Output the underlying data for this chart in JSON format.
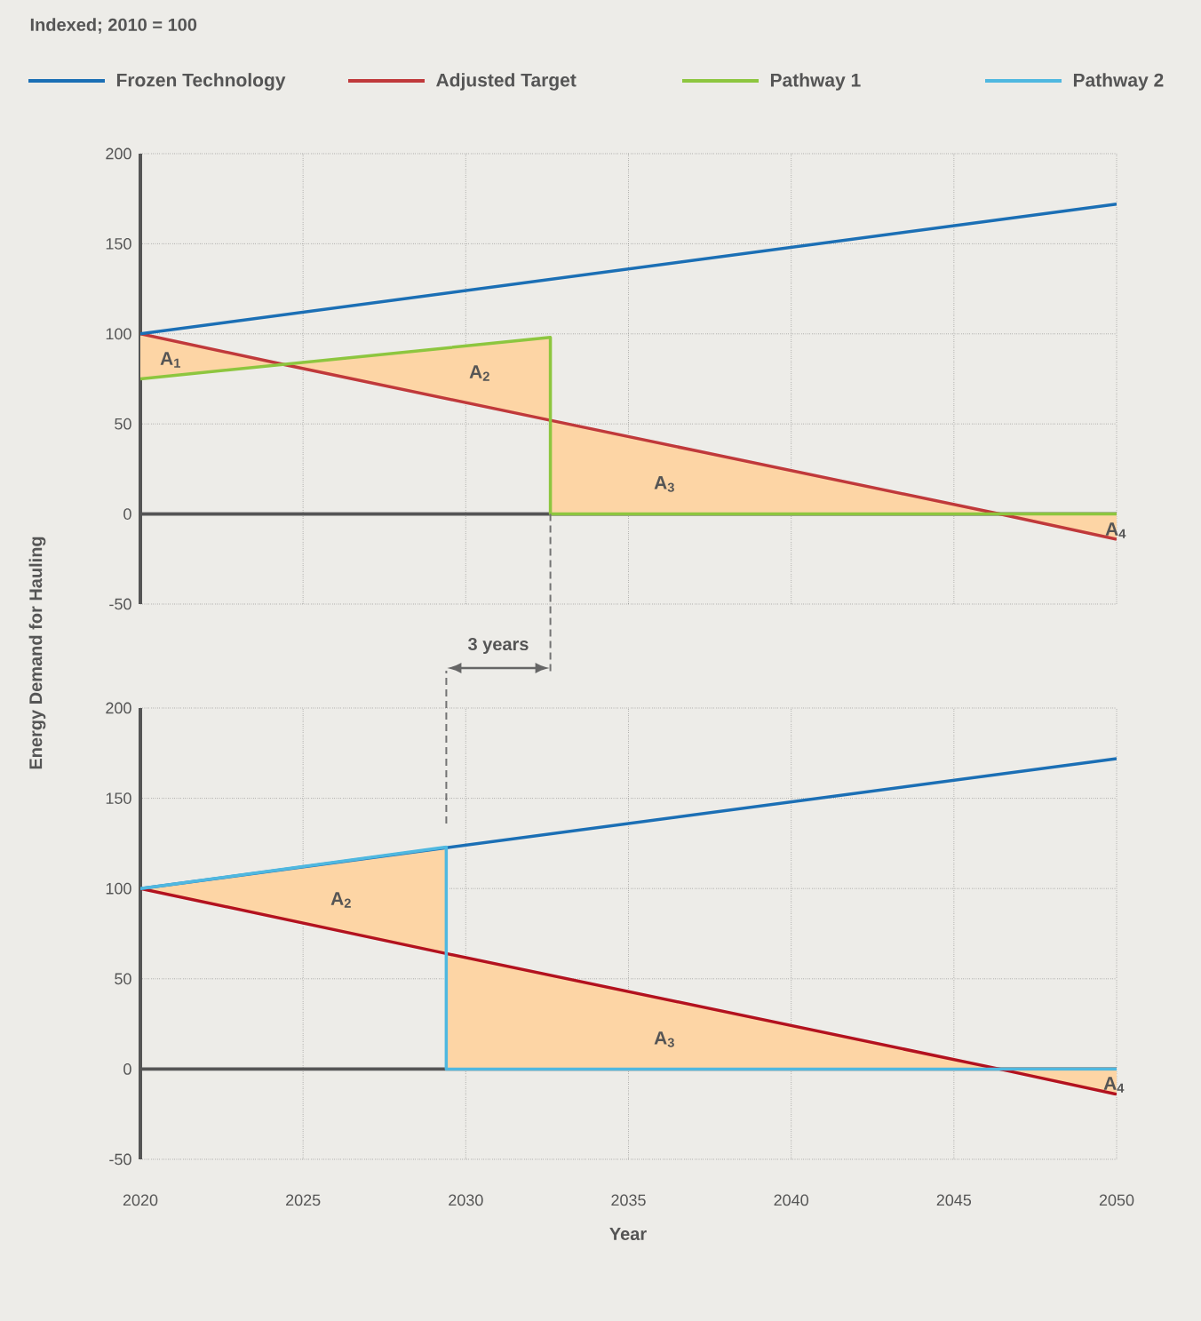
{
  "chart_data": [
    {
      "type": "line",
      "title": "Indexed; 2010 = 100",
      "ylabel": "Energy Demand for Hauling",
      "xlim": [
        2020,
        2050
      ],
      "xticks": [
        2020,
        2025,
        2030,
        2035,
        2040,
        2045,
        2050
      ],
      "ylim": [
        -50,
        200
      ],
      "yticks": [
        -50,
        0,
        50,
        100,
        150,
        200
      ],
      "grid": true,
      "legend": "top",
      "tick_labels": "y",
      "line_style": "solid",
      "marker": "none",
      "annotations": [
        "A$_{1}$",
        "A$_{2}$",
        "A$_{3}$",
        "A$_{4}$",
        "3 years"
      ],
      "series": [
        {
          "name": "Adjusted Target",
          "color": "#c0393b",
          "x": [
            2020,
            2024.4,
            2032.6,
            2032.6,
            2046.4,
            2050
          ],
          "values": [
            100,
            83,
            52,
            52,
            0,
            -14
          ],
          "lower": [
            75,
            83,
            52,
            0,
            0,
            -14
          ],
          "upper": [
            100,
            83,
            98,
            52,
            0,
            0
          ]
        },
        {
          "name": "Pathway 1",
          "color": "#8dc63f",
          "x": [
            2020,
            2032.6,
            2032.6,
            2050
          ],
          "values": [
            75,
            98,
            0,
            0
          ]
        },
        {
          "name": "Frozen Technology",
          "color": "#1b6fb5",
          "x": [
            2020,
            2050
          ],
          "values": [
            100,
            172
          ]
        }
      ]
    },
    {
      "type": "line",
      "xlabel": "Year",
      "xlim": [
        2020,
        2050
      ],
      "xticks": [
        2020,
        2025,
        2030,
        2035,
        2040,
        2045,
        2050
      ],
      "ylim": [
        -50,
        200
      ],
      "yticks": [
        -50,
        0,
        50,
        100,
        150,
        200
      ],
      "grid": true,
      "legend": "top",
      "line_style": "solid",
      "marker": "none",
      "annotations": [
        "A$_{2}$",
        "A$_{3}$",
        "A$_{4}$"
      ],
      "series": [
        {
          "color": "#b3121f",
          "x": [
            2020,
            2029.4,
            2029.4,
            2046.4,
            2050
          ],
          "values": [
            100,
            64,
            64,
            0,
            -14
          ],
          "lower": [
            100,
            64,
            0,
            0,
            -14
          ],
          "upper": [
            100,
            123,
            64,
            0,
            0
          ]
        },
        {
          "color": "#1b6fb5",
          "x": [
            2020,
            2050
          ],
          "values": [
            100,
            172
          ]
        },
        {
          "name": "Pathway 2",
          "color": "#4fb8e0",
          "x": [
            2020,
            2029.4,
            2029.4,
            2050
          ],
          "values": [
            100,
            123,
            0,
            0
          ]
        }
      ]
    }
  ]
}
